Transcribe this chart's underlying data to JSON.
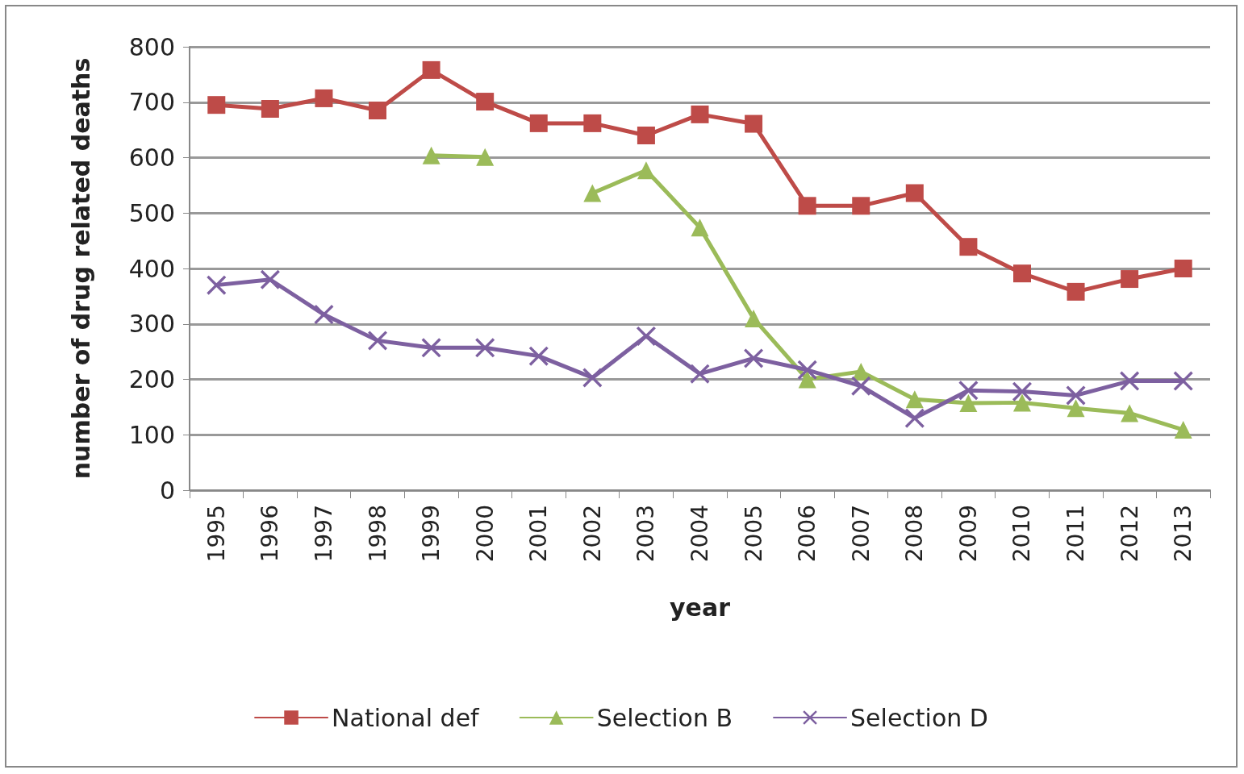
{
  "chart_data": {
    "type": "line",
    "xlabel": "year",
    "ylabel": "number of drug related deaths",
    "categories": [
      "1995",
      "1996",
      "1997",
      "1998",
      "1999",
      "2000",
      "2001",
      "2002",
      "2003",
      "2004",
      "2005",
      "2006",
      "2007",
      "2008",
      "2009",
      "2010",
      "2011",
      "2012",
      "2013"
    ],
    "series": [
      {
        "name": "National def",
        "color": "#be4b48",
        "marker": "square",
        "values": [
          695,
          688,
          707,
          685,
          758,
          701,
          662,
          662,
          640,
          678,
          661,
          513,
          513,
          536,
          439,
          391,
          358,
          381,
          400
        ]
      },
      {
        "name": "Selection B",
        "color": "#9bbb59",
        "marker": "triangle",
        "values": [
          null,
          null,
          null,
          null,
          604,
          601,
          null,
          536,
          577,
          474,
          310,
          200,
          214,
          164,
          157,
          158,
          148,
          139,
          109
        ]
      },
      {
        "name": "Selection D",
        "color": "#7d60a0",
        "marker": "cross",
        "values": [
          370,
          380,
          317,
          270,
          257,
          257,
          242,
          203,
          278,
          210,
          238,
          217,
          188,
          130,
          180,
          178,
          171,
          197,
          197
        ]
      }
    ],
    "ylim": [
      0,
      800
    ],
    "yticks": [
      0,
      100,
      200,
      300,
      400,
      500,
      600,
      700,
      800
    ],
    "grid": "y",
    "legend": "bottom",
    "line_style": "solid"
  }
}
